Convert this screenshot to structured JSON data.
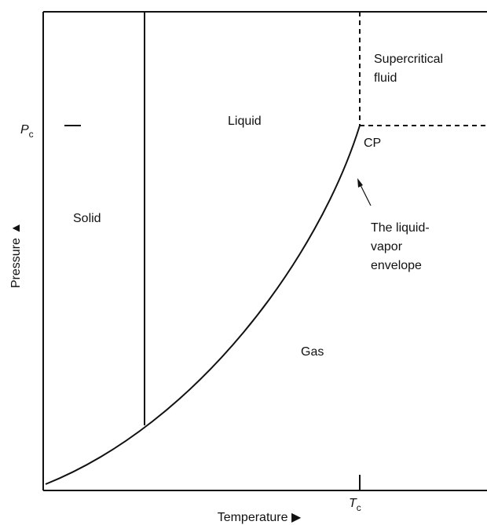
{
  "regions": {
    "supercritical": [
      "Supercritical",
      "fluid"
    ],
    "liquid": "Liquid",
    "solid": "Solid",
    "gas": "Gas"
  },
  "critical_point": "CP",
  "annotation": [
    "The liquid-",
    "vapor",
    "envelope"
  ],
  "axes": {
    "y_label": "Pressure ▲",
    "x_label": "Temperature ▶",
    "y_tick": {
      "symbol": "P",
      "subscript": "c"
    },
    "x_tick": {
      "symbol": "T",
      "subscript": "c"
    }
  }
}
